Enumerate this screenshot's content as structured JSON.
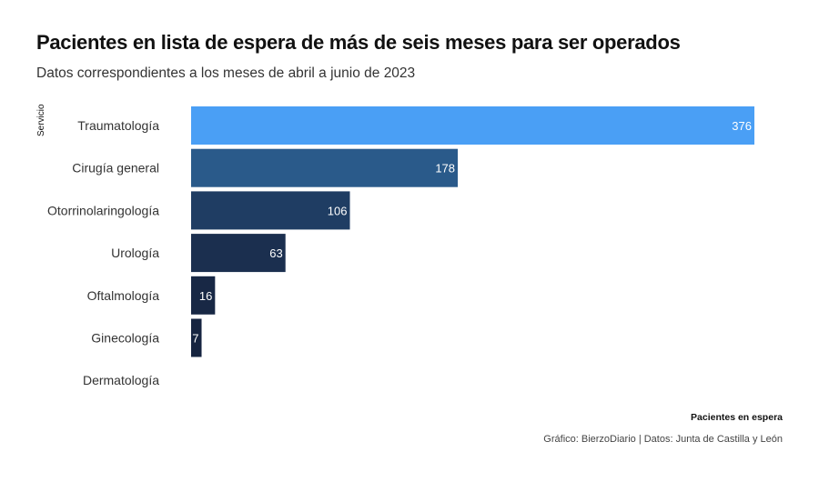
{
  "chart_data": {
    "type": "bar",
    "orientation": "horizontal",
    "title": "Pacientes en lista de espera de más de seis meses para ser operados",
    "subtitle": "Datos correspondientes a los meses de abril a junio de 2023",
    "ylabel": "Servicio",
    "xlabel": "Pacientes en espera",
    "caption": "Gráfico: BierzoDiario | Datos: Junta de Castilla y León",
    "categories": [
      "Traumatología",
      "Cirugía general",
      "Otorrinolaringología",
      "Urología",
      "Oftalmología",
      "Ginecología",
      "Dermatología"
    ],
    "values": [
      376,
      178,
      106,
      63,
      16,
      7,
      0
    ],
    "colors": [
      "#4a9ff5",
      "#2a5a8a",
      "#1f3d63",
      "#1b2f4f",
      "#182845",
      "#162440",
      "#15213b"
    ],
    "xlim": [
      0,
      376
    ],
    "grid": false,
    "legend": "none"
  }
}
